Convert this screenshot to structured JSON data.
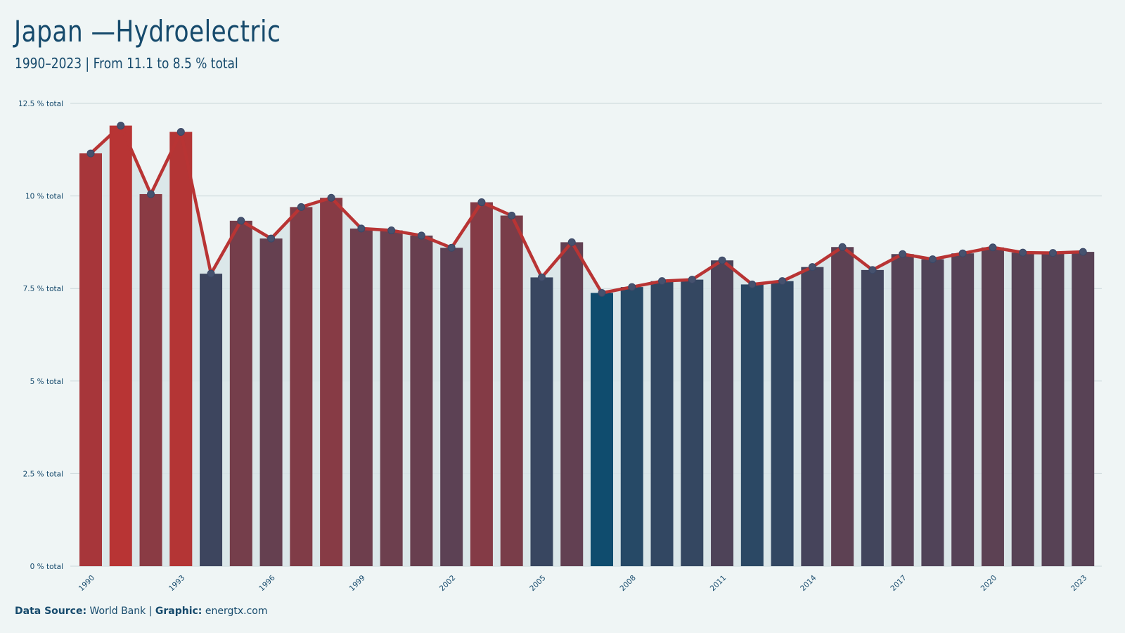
{
  "header": {
    "title": "Japan —Hydroelectric",
    "subtitle": "1990–2023 | From 11.1 to 8.5 % total"
  },
  "footer": {
    "source_label": "Data Source:",
    "source_value": "World Bank",
    "separator": "|",
    "graphic_label": "Graphic:",
    "graphic_value": "energtx.com"
  },
  "colors": {
    "background": "#eff5f5",
    "text": "#164a6c",
    "line": "#b83434",
    "high_bar": "#b83434",
    "low_bar": "#0f4c6e",
    "area": "#d7e4e6",
    "grid": "#c9d6d9"
  },
  "chart_data": {
    "type": "bar",
    "overlay": "line",
    "x": [
      1990,
      1991,
      1992,
      1993,
      1994,
      1995,
      1996,
      1997,
      1998,
      1999,
      2000,
      2001,
      2002,
      2003,
      2004,
      2005,
      2006,
      2007,
      2008,
      2009,
      2010,
      2011,
      2012,
      2013,
      2014,
      2015,
      2016,
      2017,
      2018,
      2019,
      2020,
      2021,
      2022,
      2023
    ],
    "values": [
      11.15,
      11.9,
      10.05,
      11.73,
      7.9,
      9.33,
      8.85,
      9.7,
      9.95,
      9.12,
      9.07,
      8.93,
      8.6,
      9.83,
      9.47,
      7.8,
      8.75,
      7.38,
      7.54,
      7.7,
      7.74,
      8.26,
      7.61,
      7.7,
      8.08,
      8.62,
      8.0,
      8.43,
      8.29,
      8.45,
      8.61,
      8.47,
      8.46,
      8.49
    ],
    "x_tick_labels": [
      "1990",
      "1993",
      "1996",
      "1999",
      "2002",
      "2005",
      "2008",
      "2011",
      "2014",
      "2017",
      "2020",
      "2023"
    ],
    "y_ticks": [
      0,
      2.5,
      5,
      7.5,
      10,
      12.5
    ],
    "y_tick_labels": [
      "0 % total",
      "2.5 % total",
      "5 % total",
      "7.5 % total",
      "10 % total",
      "12.5 % total"
    ],
    "ylim": [
      0,
      12.5
    ],
    "grid": true,
    "legend": "none"
  }
}
